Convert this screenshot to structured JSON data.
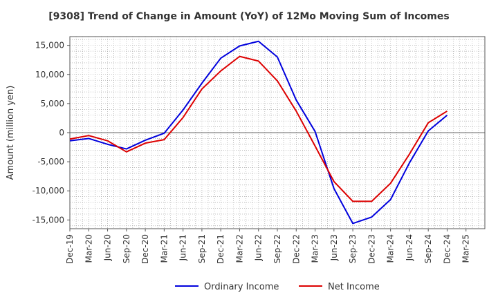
{
  "chart_data": {
    "type": "line",
    "title": "[9308]  Trend of Change in Amount (YoY) of 12Mo Moving Sum of Incomes",
    "xlabel": "",
    "ylabel": "Amount (million yen)",
    "ylim": [
      -16500,
      16500
    ],
    "yticks": [
      -15000,
      -10000,
      -5000,
      0,
      5000,
      10000,
      15000
    ],
    "ytick_labels": [
      "-15,000",
      "-10,000",
      "-5,000",
      "0",
      "5,000",
      "10,000",
      "15,000"
    ],
    "categories": [
      "Dec-19",
      "Mar-20",
      "Jun-20",
      "Sep-20",
      "Dec-20",
      "Mar-21",
      "Jun-21",
      "Sep-21",
      "Dec-21",
      "Mar-22",
      "Jun-22",
      "Sep-22",
      "Dec-22",
      "Mar-23",
      "Jun-23",
      "Sep-23",
      "Dec-23",
      "Mar-24",
      "Jun-24",
      "Sep-24",
      "Dec-24",
      "Mar-25"
    ],
    "grid": true,
    "legend_position": "bottom",
    "series": [
      {
        "name": "Ordinary Income",
        "color": "#0000dd",
        "values": [
          -1400,
          -1000,
          -2000,
          -2800,
          -1300,
          -100,
          3900,
          8500,
          12800,
          14900,
          15700,
          13000,
          5600,
          200,
          -9600,
          -15600,
          -14500,
          -11500,
          -5200,
          300,
          3000,
          null
        ]
      },
      {
        "name": "Net Income",
        "color": "#dd0000",
        "values": [
          -1100,
          -500,
          -1400,
          -3300,
          -1800,
          -1200,
          2600,
          7500,
          10600,
          13100,
          12300,
          8900,
          3700,
          -2300,
          -8400,
          -11800,
          -11800,
          -8700,
          -3700,
          1700,
          3700,
          null
        ]
      }
    ]
  }
}
